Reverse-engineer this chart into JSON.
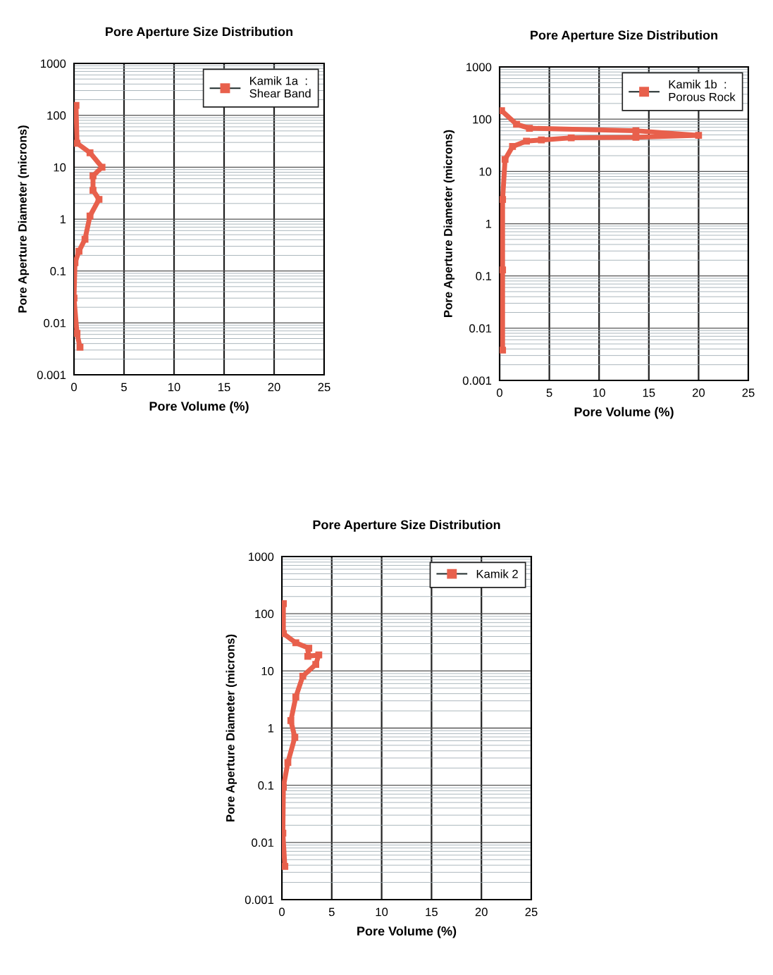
{
  "chart_data": [
    {
      "type": "line",
      "title": "Pore Aperture Size Distribution",
      "xlabel": "Pore Volume (%)",
      "ylabel": "Pore Aperture Diameter (microns)",
      "log": "y",
      "xlim": [
        0,
        25
      ],
      "xticks": [
        0,
        5,
        10,
        15,
        20,
        25
      ],
      "ylim": [
        0.001,
        1000
      ],
      "yticks": [
        0.001,
        0.01,
        0.1,
        1,
        10,
        100,
        1000
      ],
      "grid": true,
      "legend": "top right",
      "marker": "square",
      "line_style": "solid",
      "series": [
        {
          "name": "Kamik 1a  :\nShear Band",
          "color": "#e8604c",
          "x": [
            0.2,
            0.3,
            1.6,
            2.8,
            1.9,
            1.9,
            2.5,
            1.6,
            1.1,
            0.5,
            0.1,
            0.0,
            0.3,
            0.6
          ],
          "values": [
            155,
            29,
            19,
            10,
            6.8,
            3.6,
            2.4,
            1.15,
            0.41,
            0.24,
            0.145,
            0.03,
            0.0063,
            0.0034
          ]
        }
      ]
    },
    {
      "type": "line",
      "title": "Pore Aperture Size Distribution",
      "xlabel": "Pore Volume (%)",
      "ylabel": "Pore Aperture Diameter (microns)",
      "log": "y",
      "xlim": [
        0,
        25
      ],
      "xticks": [
        0,
        5,
        10,
        15,
        20,
        25
      ],
      "ylim": [
        0.001,
        1000
      ],
      "yticks": [
        0.001,
        0.01,
        0.1,
        1,
        10,
        100,
        1000
      ],
      "grid": true,
      "legend": "top right",
      "marker": "square",
      "line_style": "solid",
      "series": [
        {
          "name": "Kamik 1b  :\nPorous Rock",
          "color": "#e8604c",
          "x": [
            0.2,
            1.7,
            3.0,
            13.7,
            20.0,
            13.7,
            7.2,
            4.2,
            2.7,
            1.3,
            0.55,
            0.3,
            0.3,
            0.3
          ],
          "values": [
            145,
            80,
            67,
            60,
            49,
            45,
            44,
            40,
            38,
            30,
            17,
            2.9,
            0.13,
            0.0038
          ]
        }
      ]
    },
    {
      "type": "line",
      "title": "Pore Aperture Size Distribution",
      "xlabel": "Pore Volume (%)",
      "ylabel": "Pore Aperture Diameter (microns)",
      "log": "y",
      "xlim": [
        0,
        25
      ],
      "xticks": [
        0,
        5,
        10,
        15,
        20,
        25
      ],
      "ylim": [
        0.001,
        1000
      ],
      "yticks": [
        0.001,
        0.01,
        0.1,
        1,
        10,
        100,
        1000
      ],
      "grid": true,
      "legend": "top right",
      "marker": "square",
      "line_style": "solid",
      "series": [
        {
          "name": "Kamik 2",
          "color": "#e8604c",
          "x": [
            0.15,
            0.15,
            1.4,
            2.7,
            2.6,
            3.7,
            3.4,
            2.1,
            1.4,
            0.9,
            1.3,
            0.6,
            0.15,
            0.1,
            0.3
          ],
          "values": [
            150,
            45,
            31,
            25,
            18,
            19,
            13,
            8.1,
            3.5,
            1.35,
            0.69,
            0.25,
            0.093,
            0.0145,
            0.0038
          ]
        }
      ]
    }
  ]
}
